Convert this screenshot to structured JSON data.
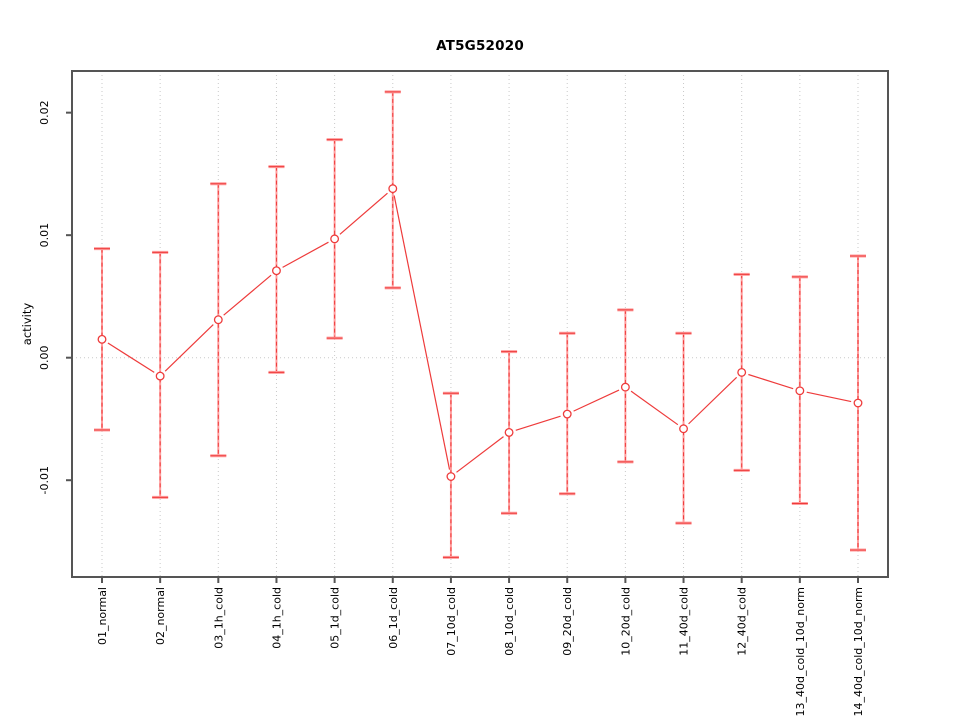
{
  "window": {
    "background": "#ffffff"
  },
  "chart_data": {
    "type": "line",
    "title": "AT5G52020",
    "xlabel": "",
    "ylabel": "activity",
    "legend": "none",
    "grid": {
      "vertical_dotted_per_category": true,
      "horizontal_zero_line_dotted": true
    },
    "categories": [
      "01_normal",
      "02_normal",
      "03_1h_cold",
      "04_1h_cold",
      "05_1d_cold",
      "06_1d_cold",
      "07_10d_cold",
      "08_10d_cold",
      "09_20d_cold",
      "10_20d_cold",
      "11_40d_cold",
      "12_40d_cold",
      "13_40d_cold_10d_norm",
      "14_40d_cold_10d_norm"
    ],
    "series": [
      {
        "name": "activity",
        "marker": "open-circle",
        "values": [
          0.0015,
          -0.0015,
          0.0031,
          0.0071,
          0.0097,
          0.0138,
          -0.0097,
          -0.0061,
          -0.0046,
          -0.0024,
          -0.0058,
          -0.0012,
          -0.0027,
          -0.0037
        ],
        "whisker_high": [
          0.0089,
          0.0086,
          0.0142,
          0.0156,
          0.0178,
          0.0217,
          -0.0029,
          0.0005,
          0.002,
          0.0039,
          0.002,
          0.0068,
          0.0066,
          0.0083
        ],
        "whisker_low": [
          -0.0059,
          -0.0114,
          -0.008,
          -0.0012,
          0.0016,
          0.0057,
          -0.0163,
          -0.0127,
          -0.0111,
          -0.0085,
          -0.0135,
          -0.0092,
          -0.0119,
          -0.0157
        ]
      }
    ],
    "yticks": [
      0.02,
      0.01,
      0.0,
      -0.01
    ],
    "ytick_labels": [
      "0.02",
      "0.01",
      "0.00",
      "-0.01"
    ],
    "ylim": [
      -0.0179,
      0.0234
    ],
    "colors": {
      "series": "#ee3b3b",
      "series_soft": "#ff9d9d",
      "grid": "#c9c9c9",
      "box": "#555555",
      "text": "#000000"
    }
  }
}
